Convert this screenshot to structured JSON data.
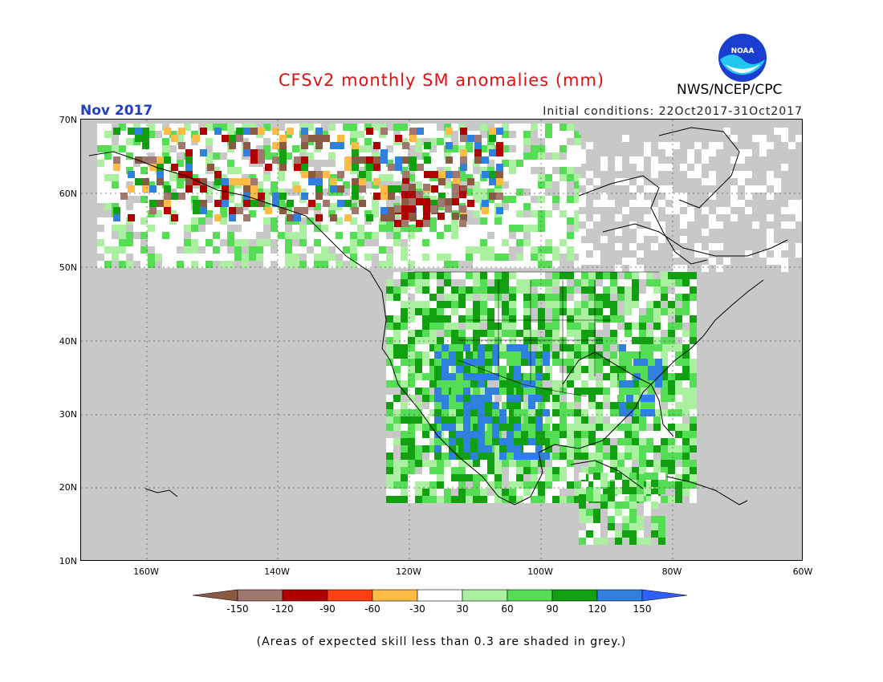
{
  "title": "CFSv2 monthly SM anomalies (mm)",
  "month": "Nov 2017",
  "initial_conditions": "Initial conditions: 22Oct2017-31Oct2017",
  "agency": "NWS/NCEP/CPC",
  "logo_text": "NOAA",
  "footnote": "(Areas of expected skill less than 0.3 are shaded in grey.)",
  "lat_labels": [
    "70N",
    "60N",
    "50N",
    "40N",
    "30N",
    "20N",
    "10N"
  ],
  "lon_labels": [
    "160W",
    "140W",
    "120W",
    "100W",
    "80W",
    "60W"
  ],
  "colorbar": {
    "labels": [
      "-150",
      "-120",
      "-90",
      "-60",
      "-30",
      "30",
      "60",
      "90",
      "120",
      "150"
    ],
    "colors": [
      "#8a5a44",
      "#a07870",
      "#b00000",
      "#ff4010",
      "#ffbb44",
      "#ffffff",
      "#aaf0a0",
      "#55dd55",
      "#10a010",
      "#3080e0",
      "#3060ff"
    ]
  },
  "map_colors": {
    "land_grey": "#c8c8c8",
    "ocean": "#c8c8c8"
  }
}
